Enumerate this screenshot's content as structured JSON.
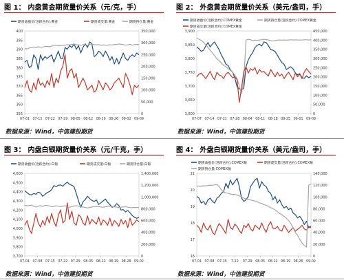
{
  "colors": {
    "blue": "#1f4e79",
    "red": "#c0392b",
    "gray": "#a6a6a6",
    "rule": "#c00000"
  },
  "figures": [
    {
      "label": "图 1：",
      "title": "内盘黄金期货量价关系（元/克，手）",
      "source": "数据来源：Wind，中信建投期货",
      "chart_data": {
        "type": "line",
        "legend": [
          "期货收盘价(活跃合约):黄金",
          "期货成交量:黄金",
          "期货持仓量:黄金"
        ],
        "y_left": {
          "min": 355,
          "max": 400,
          "ticks": [
            "400",
            "395",
            "390",
            "385",
            "380",
            "375",
            "370",
            "365",
            "360",
            "355"
          ]
        },
        "y_right": {
          "min": 0,
          "max": 350000,
          "ticks": [
            "350,000",
            "300,000",
            "250,000",
            "200,000",
            "150,000",
            "100,000",
            "50,000",
            "0"
          ]
        },
        "x_ticks": [
          "07-01",
          "07-15",
          "07-22",
          "07-29",
          "08-05",
          "08-12",
          "08-19",
          "08-26",
          "09-02",
          "09-09"
        ],
        "series": [
          {
            "name": "期货收盘价(活跃合约):黄金",
            "axis": "left",
            "values": [
              383,
              384,
              380,
              381,
              387,
              385,
              379,
              387,
              384,
              386,
              385,
              386,
              387,
              383,
              386,
              389,
              385,
              385,
              391,
              390,
              392,
              391,
              393,
              390,
              392,
              388,
              391,
              393,
              391,
              394,
              393,
              386,
              387,
              389,
              388,
              386,
              389,
              387,
              384,
              386,
              382,
              385,
              382,
              385,
              388,
              385,
              384,
              386,
              387,
              386,
              388,
              387
            ]
          },
          {
            "name": "期货成交量:黄金",
            "axis": "right",
            "values": [
              110000,
              140000,
              100000,
              90000,
              130000,
              100000,
              150000,
              120000,
              130000,
              110000,
              140000,
              120000,
              170000,
              110000,
              150000,
              130000,
              180000,
              200000,
              250000,
              150000,
              180000,
              190000,
              150000,
              170000,
              110000,
              130000,
              150000,
              130000,
              100000,
              110000,
              120000,
              90000,
              100000,
              140000,
              120000,
              100000,
              130000,
              120000,
              100000,
              110000,
              130000,
              140000,
              150000,
              130000,
              110000,
              170000,
              150000,
              120000,
              80000,
              120000,
              110000,
              120000
            ]
          },
          {
            "name": "期货持仓量:黄金",
            "axis": "right",
            "values": [
              275000,
              274000,
              278000,
              279000,
              282000,
              280000,
              283000,
              281000,
              282000,
              284000,
              285000,
              283000,
              286000,
              290000,
              289000,
              287000,
              288000,
              289000,
              290000,
              292000,
              291000,
              293000,
              294000,
              292000,
              291000,
              289000,
              292000,
              291000,
              290000,
              292000,
              293000,
              292000,
              291000,
              292000,
              289000,
              291000,
              290000,
              289000,
              292000,
              290000,
              293000,
              292000,
              295000,
              293000,
              292000,
              290000,
              291000,
              293000,
              290000,
              292000,
              293000,
              292000
            ]
          }
        ]
      }
    },
    {
      "label": "图 2：",
      "title": "外盘黄金期货量价关系（美元/盎司，手）",
      "source": "数据来源：Wind，中信建投期货",
      "chart_data": {
        "type": "line",
        "legend": [
          "期货收盘价(活跃合约):COMEX黄金",
          "期货持仓量(活跃合约):COMEX黄金",
          "期货成交量(活跃合约):COMEX黄金"
        ],
        "y_left": {
          "min": 3600,
          "max": 3900,
          "ticks": [
            "3,900",
            "3,850",
            "3,800",
            "3,750",
            "3,700",
            "3,650",
            "3,600"
          ]
        },
        "y_right": {
          "min": 0,
          "max": 450000,
          "ticks": [
            "450,000",
            "400,000",
            "350,000",
            "300,000",
            "250,000",
            "200,000",
            "150,000",
            "100,000",
            "50,000",
            "0"
          ]
        },
        "x_ticks": [
          "07-07",
          "07-14",
          "07-21",
          "07-28",
          "08-04",
          "08-11",
          "08-18",
          "08-25",
          "09-01",
          "09-08"
        ],
        "series": [
          {
            "name": "期货收盘价(活跃合约):COMEX黄金",
            "axis": "left",
            "values": [
              3842,
              3835,
              3826,
              3830,
              3845,
              3858,
              3842,
              3853,
              3860,
              3845,
              3832,
              3812,
              3798,
              3780,
              3774,
              3759,
              3750,
              3730,
              3697,
              3690,
              3685,
              3693,
              3770,
              3795,
              3810,
              3822,
              3840,
              3848,
              3852,
              3845,
              3860,
              3858,
              3846,
              3832,
              3830,
              3825,
              3812,
              3798,
              3785,
              3779,
              3760,
              3765,
              3770,
              3762,
              3748,
              3740,
              3745,
              3730,
              3728,
              3737,
              3730,
              3735
            ]
          },
          {
            "name": "期货持仓量(活跃合约):COMEX黄金",
            "axis": "right",
            "values": [
              410000,
              405000,
              398000,
              388000,
              375000,
              360000,
              345000,
              330000,
              315000,
              298000,
              288000,
              275000,
              262000,
              255000,
              245000,
              235000,
              225000,
              210000,
              190000,
              150000,
              110000,
              185000,
              400000,
              405000,
              402000,
              398000,
              400000,
              399000,
              401000,
              402000,
              405000,
              403000,
              401000,
              398000,
              395000,
              398000,
              400000,
              401000,
              400000,
              401000,
              400000,
              401000,
              402000,
              401000,
              402000,
              401000,
              400000,
              401000,
              402000,
              402000,
              401000,
              402000
            ]
          },
          {
            "name": "期货成交量(活跃合约):COMEX黄金",
            "axis": "right",
            "values": [
              200000,
              215000,
              220000,
              205000,
              190000,
              210000,
              230000,
              200000,
              185000,
              225000,
              210000,
              205000,
              190000,
              215000,
              225000,
              210000,
              195000,
              200000,
              185000,
              60000,
              140000,
              230000,
              255000,
              220000,
              245000,
              235000,
              250000,
              215000,
              240000,
              225000,
              230000,
              215000,
              205000,
              240000,
              220000,
              200000,
              225000,
              205000,
              215000,
              190000,
              210000,
              225000,
              205000,
              185000,
              220000,
              200000,
              215000,
              190000,
              225000,
              245000,
              230000,
              215000
            ]
          }
        ]
      }
    },
    {
      "label": "图 3：",
      "title": "内盘白银期货量价关系（元/千克，手）",
      "source": "数据来源：Wind，中信建投期货",
      "chart_data": {
        "type": "line",
        "legend": [
          "期货收盘价(活跃合约):白银",
          "期货成交量:白银",
          "期货持仓量:白银"
        ],
        "y_left": {
          "min": 3700,
          "max": 4600,
          "ticks": [
            "4,600",
            "4,500",
            "4,400",
            "4,300",
            "4,200",
            "4,100",
            "4,000",
            "3,900",
            "3,800",
            "3,700"
          ]
        },
        "y_right": {
          "min": 0,
          "max": 1400000,
          "ticks": [
            "1,400,000",
            "1,200,000",
            "1,000,000",
            "800,000",
            "600,000",
            "400,000",
            "200,000",
            "0"
          ]
        },
        "x_ticks": [
          "07-01",
          "07-08",
          "07-15",
          "07-22",
          "07-29",
          "08-05",
          "08-12",
          "08-19",
          "08-26",
          "09-02"
        ],
        "series": [
          {
            "name": "期货收盘价(活跃合约):白银",
            "axis": "left",
            "values": [
              4410,
              4390,
              4370,
              4365,
              4380,
              4372,
              4395,
              4387,
              4350,
              4370,
              4390,
              4402,
              4423,
              4468,
              4455,
              4470,
              4475,
              4460,
              4485,
              4505,
              4480,
              4470,
              4455,
              4380,
              4300,
              4230,
              4290,
              4315,
              4350,
              4325,
              4305,
              4295,
              4310,
              4260,
              4280,
              4300,
              4320,
              4285,
              4260,
              4230,
              4240,
              4270,
              4250,
              4200,
              4205,
              4180,
              4195,
              4170,
              4140,
              4120,
              4110,
              4120
            ]
          },
          {
            "name": "期货成交量:白银",
            "axis": "right",
            "values": [
              520000,
              600000,
              460000,
              380000,
              550000,
              720000,
              560000,
              490000,
              600000,
              520000,
              670000,
              560000,
              720000,
              580000,
              500000,
              690000,
              780000,
              560000,
              600000,
              900000,
              620000,
              760000,
              560000,
              520000,
              700000,
              660000,
              560000,
              520000,
              680000,
              540000,
              620000,
              580000,
              540000,
              660000,
              520000,
              610000,
              580000,
              520000,
              640000,
              510000,
              600000,
              560000,
              500000,
              620000,
              540000,
              600000,
              480000,
              640000,
              520000,
              560000,
              610000,
              580000
            ]
          },
          {
            "name": "期货持仓量:白银",
            "axis": "right",
            "values": [
              860000,
              850000,
              855000,
              860000,
              845000,
              830000,
              845000,
              850000,
              840000,
              855000,
              860000,
              848000,
              835000,
              840000,
              850000,
              842000,
              838000,
              845000,
              850000,
              832000,
              825000,
              838000,
              845000,
              850000,
              842000,
              835000,
              828000,
              820000,
              815000,
              822000,
              830000,
              836000,
              840000,
              835000,
              830000,
              825000,
              835000,
              840000,
              842000,
              838000,
              832000,
              828000,
              822000,
              826000,
              830000,
              835000,
              825000,
              820000,
              818000,
              822000,
              820000,
              818000
            ]
          }
        ]
      }
    },
    {
      "label": "图 4：",
      "title": "外盘白银期货量价关系（美元/盎司，手）",
      "source": "数据来源：Wind，中信建投期货",
      "chart_data": {
        "type": "line",
        "legend": [
          "期货收盘价(活跃合约):COMEX银",
          "期货成交量(活跃合约):COMEX银",
          "期货持仓量:COMEX银"
        ],
        "y_left": {
          "min": 16,
          "max": 21,
          "ticks": [
            "21",
            "20",
            "19",
            "18",
            "17",
            "16"
          ]
        },
        "y_right": {
          "min": 0,
          "max": 140000,
          "ticks": [
            "140,000",
            "120,000",
            "100,000",
            "80,000",
            "60,000",
            "40,000",
            "20,000",
            "0"
          ]
        },
        "x_ticks": [
          "07-01",
          "07-08",
          "07-15",
          "7-22",
          "07-29",
          "08-05",
          "08-12",
          "08-19",
          "08-26",
          "09-02"
        ],
        "series": [
          {
            "name": "期货收盘价(活跃合约):COMEX银",
            "axis": "left",
            "values": [
              19.6,
              19.5,
              19.2,
              19.3,
              19.1,
              19.4,
              19.5,
              19.3,
              19.2,
              19.5,
              19.6,
              19.8,
              19.9,
              20.4,
              20.1,
              20.6,
              20.3,
              20.5,
              20.7,
              20.2,
              19.5,
              19.3,
              19.4,
              19.6,
              20.2,
              20.4,
              20.6,
              20.7,
              20.1,
              20.5,
              20.3,
              20.2,
              19.9,
              19.8,
              19.4,
              19.6,
              19.2,
              19.4,
              19.1,
              18.9,
              19.0,
              18.8,
              18.9,
              18.6,
              18.5,
              18.3,
              18.4,
              18.2,
              17.9,
              18.1,
              17.7,
              17.8
            ]
          },
          {
            "name": "期货成交量(活跃合约):COMEX银",
            "axis": "right",
            "values": [
              52000,
              48000,
              40000,
              56000,
              47000,
              44000,
              52000,
              40000,
              36000,
              47000,
              55000,
              50000,
              44000,
              38000,
              62000,
              48000,
              45000,
              54000,
              50000,
              43000,
              38000,
              52000,
              48000,
              55000,
              46000,
              42000,
              52000,
              49000,
              45000,
              56000,
              47000,
              40000,
              52000,
              58000,
              47000,
              46000,
              50000,
              44000,
              42000,
              52000,
              46000,
              40000,
              44000,
              48000,
              42000,
              45000,
              48000,
              52000,
              46000,
              44000,
              50000,
              48000
            ]
          },
          {
            "name": "期货持仓量:COMEX银",
            "axis": "right",
            "values": [
              118000,
              118500,
              118000,
              119000,
              118800,
              119500,
              120000,
              119800,
              120500,
              121000,
              118000,
              112000,
              108000,
              107000,
              106000,
              105000,
              104000,
              104500,
              103000,
              102000,
              100000,
              98000,
              97000,
              96000,
              95000,
              94000,
              93000,
              92000,
              90000,
              89000,
              87000,
              86000,
              84000,
              82000,
              80000,
              78000,
              75000,
              72000,
              70000,
              67000,
              64000,
              60000,
              55000,
              48000,
              40000,
              35000,
              28000,
              22000,
              18000,
              15000,
              120000,
              122000
            ]
          }
        ]
      }
    }
  ]
}
